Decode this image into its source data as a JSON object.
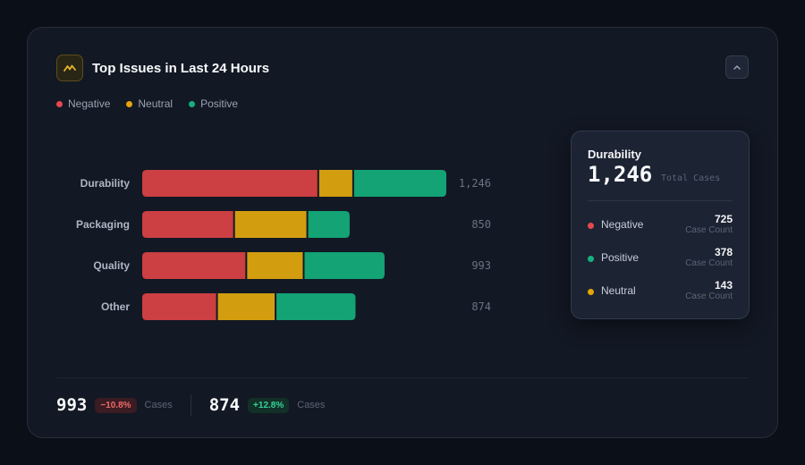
{
  "header": {
    "title": "Top Issues in Last 24 Hours",
    "icon": "chart-wave-icon",
    "collapse_icon": "chevron-up-icon"
  },
  "colors": {
    "negative": "#cc3f42",
    "neutral": "#d29e10",
    "positive": "#13a374",
    "accent": "#e2b528"
  },
  "legend": [
    {
      "label": "Negative",
      "color": "#e5484d"
    },
    {
      "label": "Neutral",
      "color": "#e5a50a"
    },
    {
      "label": "Positive",
      "color": "#16b07e"
    }
  ],
  "chart_data": {
    "type": "bar",
    "orientation": "horizontal",
    "stacked": true,
    "categories": [
      "Durability",
      "Packaging",
      "Quality",
      "Other"
    ],
    "series": [
      {
        "name": "Negative",
        "values": [
          725,
          380,
          430,
          310
        ]
      },
      {
        "name": "Neutral",
        "values": [
          143,
          300,
          235,
          240
        ]
      },
      {
        "name": "Positive",
        "values": [
          378,
          170,
          328,
          324
        ]
      }
    ],
    "totals": [
      "1,246",
      "850",
      "993",
      "874"
    ],
    "grid": false,
    "legend_position": "top-left"
  },
  "tooltip": {
    "name": "Durability",
    "total": "1,246",
    "total_label": "Total Cases",
    "rows": [
      {
        "label": "Negative",
        "value": "725",
        "sub": "Case Count",
        "color": "#e5484d"
      },
      {
        "label": "Positive",
        "value": "378",
        "sub": "Case Count",
        "color": "#16b07e"
      },
      {
        "label": "Neutral",
        "value": "143",
        "sub": "Case Count",
        "color": "#e5a50a"
      }
    ]
  },
  "footer": {
    "stats": [
      {
        "value": "993",
        "change": "−10.8%",
        "label": "Cases",
        "trend": "negative"
      },
      {
        "value": "874",
        "change": "+12.8%",
        "label": "Cases",
        "trend": "positive"
      }
    ]
  }
}
